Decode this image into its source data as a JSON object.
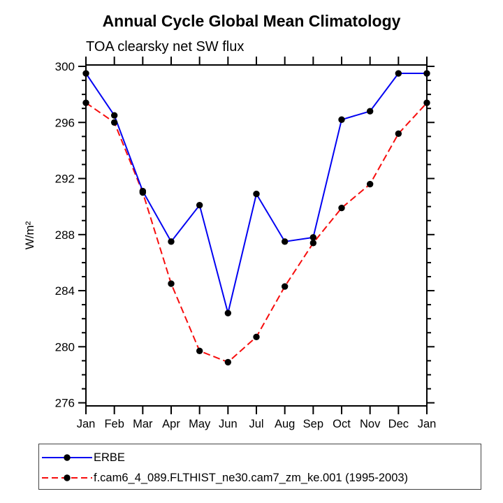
{
  "chart_data": {
    "type": "line",
    "title": "Annual Cycle Global Mean Climatology",
    "subtitle": "TOA clearsky net SW flux",
    "ylabel": "W/m²",
    "xlabel": "",
    "x_categories": [
      "Jan",
      "Feb",
      "Mar",
      "Apr",
      "May",
      "Jun",
      "Jul",
      "Aug",
      "Sep",
      "Oct",
      "Nov",
      "Dec",
      "Jan"
    ],
    "y_axis": {
      "min": 276,
      "max": 300,
      "major_step": 4,
      "minor_step": 1
    },
    "grid": false,
    "legend_position": "bottom-left",
    "marker_color": "#000000",
    "axis_color": "#000000",
    "series": [
      {
        "name": "ERBE",
        "color": "#0202f2",
        "style": "solid",
        "marker": "filled-circle",
        "values": [
          299.5,
          296.5,
          291.1,
          287.5,
          290.1,
          282.4,
          290.9,
          287.5,
          287.8,
          296.2,
          296.8,
          299.5,
          299.5
        ]
      },
      {
        "name": "f.cam6_4_089.FLTHIST_ne30.cam7_zm_ke.001 (1995-2003)",
        "color": "#f70d0d",
        "style": "dashed",
        "marker": "filled-circle",
        "values": [
          297.4,
          296.0,
          291.0,
          284.5,
          279.7,
          278.9,
          280.7,
          284.3,
          287.4,
          289.9,
          291.6,
          295.2,
          297.4
        ]
      }
    ]
  }
}
